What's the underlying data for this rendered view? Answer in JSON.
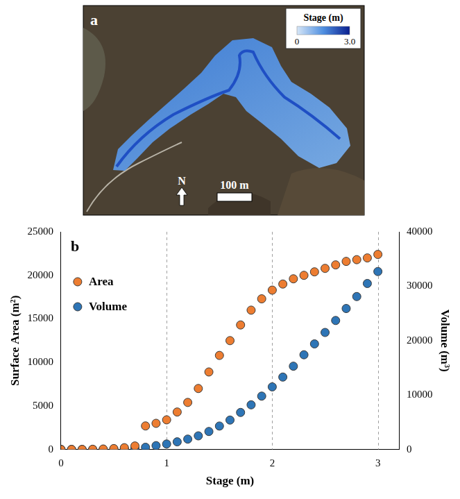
{
  "map": {
    "panel_label": "a",
    "colorbar": {
      "title": "Stage (m)",
      "range": [
        0,
        3
      ],
      "ticks": [
        0,
        {
          "value": 3,
          "label": "3.0"
        }
      ]
    },
    "north_label": "N",
    "scale_label": "100 m"
  },
  "chart_data": {
    "type": "scatter",
    "panel_label": "b",
    "x_label": "Stage (m)",
    "y_label": "Surface Area (m²)",
    "y2_label": "Volume (m³)",
    "x": [
      0,
      0.1,
      0.2,
      0.3,
      0.4,
      0.5,
      0.6,
      0.7,
      0.8,
      0.9,
      1.0,
      1.1,
      1.2,
      1.3,
      1.4,
      1.5,
      1.6,
      1.7,
      1.8,
      1.9,
      2.0,
      2.1,
      2.2,
      2.3,
      2.4,
      2.5,
      2.6,
      2.7,
      2.8,
      2.9,
      3.0
    ],
    "series": [
      {
        "name": "Area",
        "color": "#ed7d31",
        "marker": "circle",
        "values": [
          0,
          0,
          0,
          20,
          50,
          100,
          200,
          400,
          2700,
          3000,
          3400,
          4300,
          5400,
          7000,
          8900,
          10800,
          12500,
          14300,
          16000,
          17300,
          18300,
          19000,
          19600,
          20000,
          20400,
          20800,
          21200,
          21600,
          21800,
          22000,
          22400
        ]
      },
      {
        "name": "Volume",
        "color": "#2e75b6",
        "marker": "circle",
        "axis": "y2",
        "values": [
          0,
          0,
          0,
          0,
          0,
          0,
          100,
          200,
          400,
          700,
          1000,
          1400,
          1900,
          2500,
          3300,
          4300,
          5400,
          6800,
          8200,
          9800,
          11500,
          13300,
          15300,
          17400,
          19400,
          21500,
          23700,
          25900,
          28100,
          30500,
          32700
        ]
      }
    ],
    "xlim": [
      0,
      3.2
    ],
    "xticks": [
      0,
      1,
      2,
      3
    ],
    "ylim": [
      0,
      25000
    ],
    "yticks": [
      0,
      5000,
      10000,
      15000,
      20000,
      25000
    ],
    "y2lim": [
      0,
      40000
    ],
    "y2ticks": [
      0,
      10000,
      20000,
      30000,
      40000
    ],
    "grid": true,
    "legend": "upper left"
  }
}
